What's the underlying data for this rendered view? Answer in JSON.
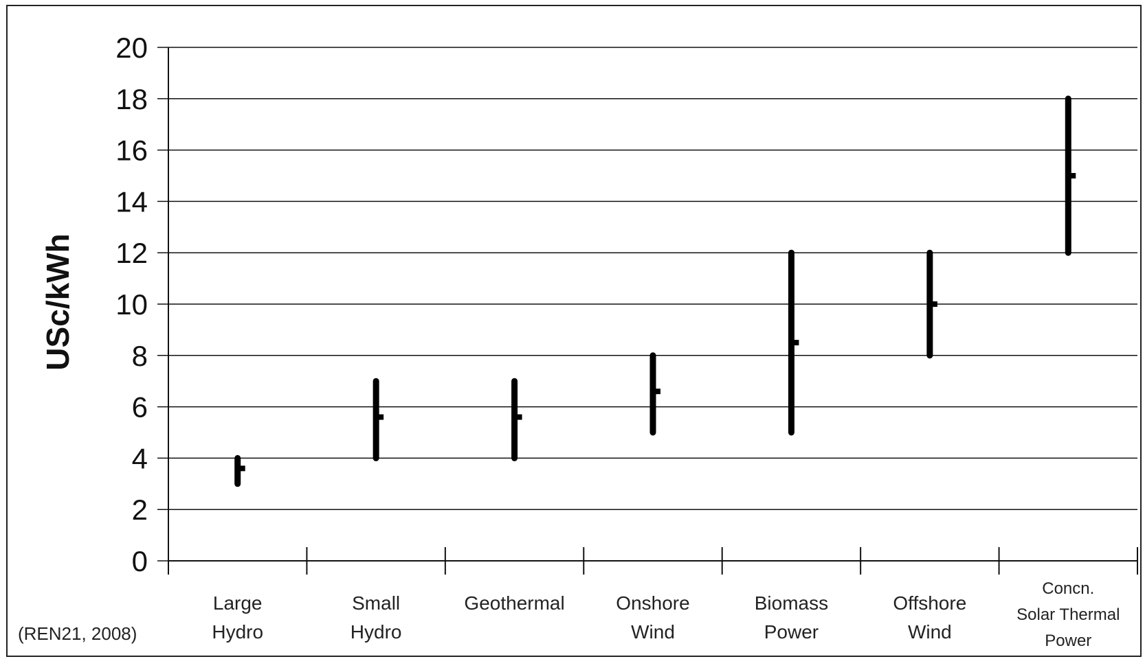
{
  "chart_data": {
    "type": "range",
    "ylabel": "USc/kWh",
    "ylim": [
      0,
      20
    ],
    "yticks": [
      0,
      2,
      4,
      6,
      8,
      10,
      12,
      14,
      16,
      18,
      20
    ],
    "grid": "horizontal",
    "source": "(REN21, 2008)",
    "categories": [
      {
        "label": [
          "Large",
          "Hydro"
        ],
        "low": 3,
        "high": 4,
        "mid": 3.6
      },
      {
        "label": [
          "Small",
          "Hydro"
        ],
        "low": 4,
        "high": 7,
        "mid": 5.6
      },
      {
        "label": [
          "Geothermal"
        ],
        "low": 4,
        "high": 7,
        "mid": 5.6
      },
      {
        "label": [
          "Onshore",
          "Wind"
        ],
        "low": 5,
        "high": 8,
        "mid": 6.6
      },
      {
        "label": [
          "Biomass",
          "Power"
        ],
        "low": 5,
        "high": 12,
        "mid": 8.5
      },
      {
        "label": [
          "Offshore",
          "Wind"
        ],
        "low": 8,
        "high": 12,
        "mid": 10
      },
      {
        "label": [
          "Concn.",
          "Solar Thermal",
          "Power"
        ],
        "low": 12,
        "high": 18,
        "mid": 15
      }
    ]
  }
}
